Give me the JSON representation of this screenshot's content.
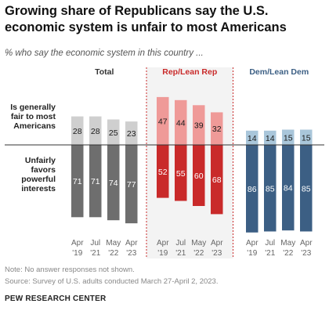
{
  "header": {
    "title": "Growing share of Republicans say the U.S. economic system is unfair to most Americans",
    "subtitle": "% who say the economic system in this country ..."
  },
  "chart_data": {
    "type": "bar",
    "categories": [
      "Apr\n'19",
      "Jul\n'21",
      "May\n'22",
      "Apr\n'23"
    ],
    "row_labels": {
      "fair": "Is generally fair to most Americans",
      "unfair": "Unfairly favors powerful interests"
    },
    "groups": [
      {
        "name": "Total",
        "fair": [
          28,
          28,
          25,
          23
        ],
        "unfair": [
          71,
          71,
          74,
          77
        ],
        "fair_color": "#cfcfcf",
        "unfair_color": "#6e6e6e",
        "label_color": "#333333",
        "shaded": false
      },
      {
        "name": "Rep/Lean Rep",
        "fair": [
          47,
          44,
          39,
          32
        ],
        "unfair": [
          52,
          55,
          60,
          68
        ],
        "fair_color": "#ef9a98",
        "unfair_color": "#c92a2a",
        "label_color": "#c92a2a",
        "shaded": true
      },
      {
        "name": "Dem/Lean Dem",
        "fair": [
          14,
          14,
          15,
          15
        ],
        "unfair": [
          86,
          85,
          84,
          85
        ],
        "fair_color": "#a9c6da",
        "unfair_color": "#3c5f84",
        "label_color": "#3c5f84",
        "shaded": false
      }
    ]
  },
  "footer": {
    "note": "Note: No answer responses not shown.",
    "source": "Source: Survey of U.S. adults conducted March 27-April 2, 2023.",
    "brand": "PEW RESEARCH CENTER"
  }
}
